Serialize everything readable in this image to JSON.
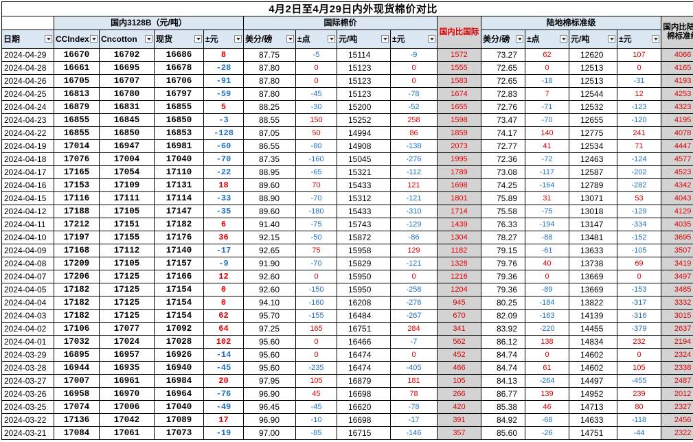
{
  "title": "4月2日至4月29日内外现货棉价对比",
  "groups": {
    "domestic": "国内3128B（元/吨）",
    "international": "国际棉价",
    "ratio_intl": "国内比国际",
    "port": "陆地棉标准级",
    "ratio_port": "国内比陆地棉标准级"
  },
  "headers": [
    "日期",
    "CCIndex",
    "Cncotton",
    "现货",
    "±元",
    "美分/磅",
    "±点",
    "元/吨",
    "±元",
    "国内比国际",
    "美分/磅",
    "±点",
    "元/吨",
    "±元",
    "国内比陆地棉标准级"
  ],
  "colors": {
    "header_bg": "#dbe7f3",
    "ratio_bg": "#d3d3d3",
    "positive": "#e00000",
    "negative": "#1f6fbf"
  },
  "rows": [
    [
      "2024-04-29",
      "16670",
      "16702",
      "16686",
      "8",
      "87.75",
      "-5",
      "15114",
      "-9",
      "1572",
      "73.27",
      "62",
      "12620",
      "107",
      "4066"
    ],
    [
      "2024-04-28",
      "16661",
      "16695",
      "16678",
      "-28",
      "87.80",
      "0",
      "15123",
      "0",
      "1555",
      "72.65",
      "0",
      "12513",
      "0",
      "4165"
    ],
    [
      "2024-04-26",
      "16705",
      "16707",
      "16706",
      "-91",
      "87.80",
      "0",
      "15123",
      "0",
      "1583",
      "72.65",
      "-18",
      "12513",
      "-31",
      "4193"
    ],
    [
      "2024-04-25",
      "16813",
      "16780",
      "16797",
      "-59",
      "87.80",
      "-45",
      "15123",
      "-78",
      "1674",
      "72.83",
      "7",
      "12544",
      "12",
      "4253"
    ],
    [
      "2024-04-24",
      "16879",
      "16831",
      "16855",
      "5",
      "88.25",
      "-30",
      "15200",
      "-52",
      "1655",
      "72.76",
      "-71",
      "12532",
      "-123",
      "4323"
    ],
    [
      "2024-04-23",
      "16855",
      "16845",
      "16850",
      "-3",
      "88.55",
      "150",
      "15252",
      "258",
      "1598",
      "73.47",
      "-70",
      "12655",
      "-120",
      "4195"
    ],
    [
      "2024-04-22",
      "16855",
      "16850",
      "16853",
      "-128",
      "87.05",
      "50",
      "14994",
      "86",
      "1859",
      "74.17",
      "140",
      "12775",
      "241",
      "4078"
    ],
    [
      "2024-04-19",
      "17014",
      "16947",
      "16981",
      "-60",
      "86.55",
      "-80",
      "14908",
      "-138",
      "2073",
      "72.77",
      "41",
      "12534",
      "71",
      "4447"
    ],
    [
      "2024-04-18",
      "17076",
      "17004",
      "17040",
      "-70",
      "87.35",
      "-160",
      "15045",
      "-276",
      "1995",
      "72.36",
      "-72",
      "12463",
      "-124",
      "4577"
    ],
    [
      "2024-04-17",
      "17165",
      "17054",
      "17110",
      "-22",
      "88.95",
      "-65",
      "15321",
      "-112",
      "1789",
      "73.08",
      "-117",
      "12587",
      "-202",
      "4523"
    ],
    [
      "2024-04-16",
      "17153",
      "17109",
      "17131",
      "18",
      "89.60",
      "70",
      "15433",
      "121",
      "1698",
      "74.25",
      "-164",
      "12789",
      "-282",
      "4342"
    ],
    [
      "2024-04-15",
      "17116",
      "17111",
      "17114",
      "-33",
      "88.90",
      "-70",
      "15312",
      "-121",
      "1801",
      "75.89",
      "31",
      "13071",
      "53",
      "4043"
    ],
    [
      "2024-04-12",
      "17188",
      "17105",
      "17147",
      "-35",
      "89.60",
      "-180",
      "15433",
      "-310",
      "1714",
      "75.58",
      "-75",
      "13018",
      "-129",
      "4129"
    ],
    [
      "2024-04-11",
      "17212",
      "17151",
      "17182",
      "6",
      "91.40",
      "-75",
      "15743",
      "-129",
      "1439",
      "76.33",
      "-194",
      "13147",
      "-334",
      "4035"
    ],
    [
      "2024-04-10",
      "17197",
      "17155",
      "17176",
      "36",
      "92.15",
      "-50",
      "15872",
      "-86",
      "1304",
      "78.27",
      "-88",
      "13481",
      "-152",
      "3695"
    ],
    [
      "2024-04-09",
      "17168",
      "17112",
      "17140",
      "-17",
      "92.65",
      "75",
      "15958",
      "129",
      "1182",
      "79.15",
      "-61",
      "13633",
      "-105",
      "3507"
    ],
    [
      "2024-04-08",
      "17209",
      "17105",
      "17157",
      "-9",
      "91.90",
      "-70",
      "15829",
      "-121",
      "1328",
      "79.76",
      "40",
      "13738",
      "69",
      "3419"
    ],
    [
      "2024-04-07",
      "17206",
      "17125",
      "17166",
      "12",
      "92.60",
      "0",
      "15950",
      "0",
      "1216",
      "79.36",
      "0",
      "13669",
      "0",
      "3497"
    ],
    [
      "2024-04-05",
      "17182",
      "17125",
      "17154",
      "0",
      "92.60",
      "-150",
      "15950",
      "-258",
      "1204",
      "79.36",
      "-89",
      "13669",
      "-153",
      "3485"
    ],
    [
      "2024-04-04",
      "17182",
      "17125",
      "17154",
      "0",
      "94.10",
      "-160",
      "16208",
      "-276",
      "945",
      "80.25",
      "-184",
      "13822",
      "-317",
      "3332"
    ],
    [
      "2024-04-03",
      "17182",
      "17125",
      "17154",
      "62",
      "95.70",
      "-155",
      "16484",
      "-267",
      "670",
      "82.09",
      "-183",
      "14139",
      "-316",
      "3015"
    ],
    [
      "2024-04-02",
      "17106",
      "17077",
      "17092",
      "64",
      "97.25",
      "165",
      "16751",
      "284",
      "341",
      "83.92",
      "-220",
      "14455",
      "-379",
      "2637"
    ],
    [
      "2024-04-01",
      "17032",
      "17024",
      "17028",
      "102",
      "95.60",
      "0",
      "16466",
      "-7",
      "562",
      "86.12",
      "138",
      "14834",
      "232",
      "2194"
    ],
    [
      "2024-03-29",
      "16895",
      "16957",
      "16926",
      "-14",
      "95.60",
      "0",
      "16474",
      "0",
      "452",
      "84.74",
      "0",
      "14602",
      "0",
      "2324"
    ],
    [
      "2024-03-28",
      "16944",
      "16935",
      "16940",
      "-45",
      "95.60",
      "-235",
      "16474",
      "-405",
      "466",
      "84.74",
      "61",
      "14602",
      "105",
      "2338"
    ],
    [
      "2024-03-27",
      "17007",
      "16961",
      "16984",
      "20",
      "97.95",
      "105",
      "16879",
      "181",
      "105",
      "84.13",
      "-264",
      "14497",
      "-455",
      "2487"
    ],
    [
      "2024-03-26",
      "16958",
      "16970",
      "16964",
      "-76",
      "96.90",
      "45",
      "16698",
      "78",
      "266",
      "86.77",
      "139",
      "14952",
      "239",
      "2012"
    ],
    [
      "2024-03-25",
      "17074",
      "17006",
      "17040",
      "-49",
      "96.45",
      "-45",
      "16620",
      "-78",
      "420",
      "85.38",
      "46",
      "14713",
      "80",
      "2327"
    ],
    [
      "2024-03-22",
      "17136",
      "17042",
      "17089",
      "17",
      "96.90",
      "-10",
      "16698",
      "-17",
      "391",
      "84.92",
      "-68",
      "14633",
      "-118",
      "2456"
    ],
    [
      "2024-03-21",
      "17084",
      "17061",
      "17073",
      "-19",
      "97.00",
      "-85",
      "16715",
      "-146",
      "357",
      "85.60",
      "-26",
      "14751",
      "-44",
      "2322"
    ]
  ]
}
